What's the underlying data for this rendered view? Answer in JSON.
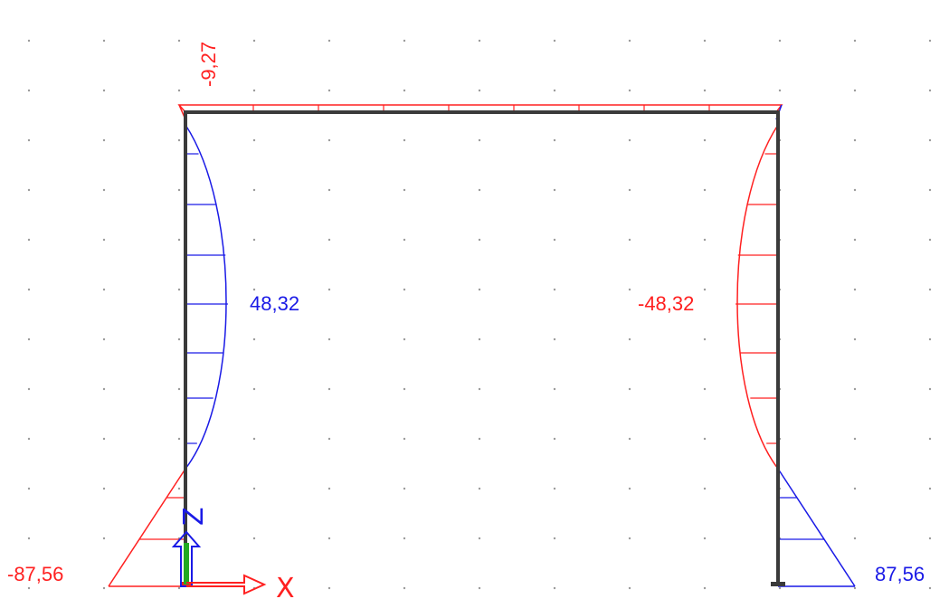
{
  "colors": {
    "frame": "#3a3a3a",
    "negative": "#ff2020",
    "positive": "#1a1ae6",
    "grid_dot": "#9a9a9a",
    "axis_arrow": "#1a1ae6",
    "axis_x_arrow": "#ff2020",
    "support_green": "#22aa22"
  },
  "frame": {
    "members": [
      "left-column",
      "beam",
      "right-column"
    ],
    "supports": [
      "left-base",
      "right-base"
    ]
  },
  "diagram": {
    "beam_value": "-9,27",
    "left_column_mid_value": "48,32",
    "right_column_mid_value": "-48,32",
    "left_base_value": "-87,56",
    "right_base_value": "87,56"
  },
  "axes": {
    "z_label": "Z",
    "x_label": "X"
  },
  "icons": {
    "z_axis": "up-arrow-icon",
    "x_axis": "right-arrow-icon"
  }
}
